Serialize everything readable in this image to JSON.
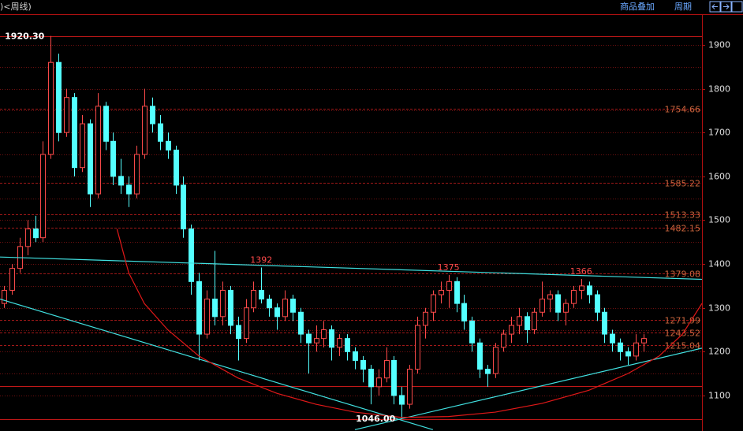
{
  "header": {
    "left": ")<周线)",
    "overlay": "商品叠加",
    "period": "周期"
  },
  "chart_data": {
    "type": "candlestick",
    "up_color": "#ff4a4a",
    "down_color": "#54ffff",
    "xlim": [
      -0.5,
      89.5
    ],
    "ylim": [
      1019,
      1970
    ],
    "yticks": [
      1100,
      1200,
      1300,
      1400,
      1500,
      1600,
      1700,
      1800,
      1900
    ],
    "minor_yticks": [
      1150,
      1250,
      1350,
      1450,
      1550,
      1650,
      1750,
      1850
    ],
    "grid": true,
    "candles": [
      [
        1310,
        1350,
        1300,
        1340
      ],
      [
        1340,
        1400,
        1330,
        1390
      ],
      [
        1390,
        1460,
        1380,
        1440
      ],
      [
        1440,
        1500,
        1420,
        1480
      ],
      [
        1480,
        1510,
        1450,
        1460
      ],
      [
        1460,
        1680,
        1450,
        1650
      ],
      [
        1650,
        1920.3,
        1640,
        1860
      ],
      [
        1860,
        1880,
        1680,
        1700
      ],
      [
        1700,
        1800,
        1690,
        1780
      ],
      [
        1780,
        1790,
        1600,
        1620
      ],
      [
        1620,
        1740,
        1610,
        1720
      ],
      [
        1720,
        1730,
        1530,
        1560
      ],
      [
        1560,
        1790,
        1550,
        1760
      ],
      [
        1760,
        1770,
        1660,
        1680
      ],
      [
        1680,
        1700,
        1580,
        1600
      ],
      [
        1600,
        1640,
        1560,
        1580
      ],
      [
        1580,
        1600,
        1530,
        1560
      ],
      [
        1560,
        1670,
        1550,
        1650
      ],
      [
        1650,
        1800,
        1640,
        1760
      ],
      [
        1760,
        1780,
        1700,
        1720
      ],
      [
        1720,
        1740,
        1660,
        1680
      ],
      [
        1680,
        1700,
        1640,
        1660
      ],
      [
        1660,
        1670,
        1560,
        1580
      ],
      [
        1580,
        1600,
        1460,
        1480
      ],
      [
        1480,
        1490,
        1330,
        1360
      ],
      [
        1360,
        1380,
        1180,
        1240
      ],
      [
        1240,
        1340,
        1230,
        1320
      ],
      [
        1320,
        1430,
        1260,
        1280
      ],
      [
        1280,
        1360,
        1260,
        1340
      ],
      [
        1340,
        1350,
        1240,
        1260
      ],
      [
        1260,
        1280,
        1180,
        1230
      ],
      [
        1230,
        1320,
        1220,
        1300
      ],
      [
        1300,
        1360,
        1290,
        1340
      ],
      [
        1340,
        1392,
        1310,
        1320
      ],
      [
        1320,
        1330,
        1280,
        1300
      ],
      [
        1300,
        1310,
        1250,
        1280
      ],
      [
        1280,
        1340,
        1270,
        1320
      ],
      [
        1320,
        1330,
        1270,
        1290
      ],
      [
        1290,
        1300,
        1220,
        1240
      ],
      [
        1240,
        1250,
        1150,
        1220
      ],
      [
        1220,
        1260,
        1200,
        1230
      ],
      [
        1230,
        1270,
        1210,
        1250
      ],
      [
        1250,
        1260,
        1180,
        1210
      ],
      [
        1210,
        1240,
        1190,
        1230
      ],
      [
        1230,
        1240,
        1180,
        1200
      ],
      [
        1200,
        1210,
        1160,
        1180
      ],
      [
        1180,
        1190,
        1130,
        1160
      ],
      [
        1160,
        1170,
        1080,
        1120
      ],
      [
        1120,
        1160,
        1100,
        1140
      ],
      [
        1140,
        1210,
        1130,
        1180
      ],
      [
        1180,
        1190,
        1080,
        1100
      ],
      [
        1100,
        1120,
        1046,
        1080
      ],
      [
        1080,
        1170,
        1070,
        1160
      ],
      [
        1160,
        1280,
        1150,
        1260
      ],
      [
        1260,
        1300,
        1230,
        1290
      ],
      [
        1290,
        1340,
        1270,
        1330
      ],
      [
        1330,
        1360,
        1310,
        1340
      ],
      [
        1340,
        1375,
        1300,
        1360
      ],
      [
        1360,
        1370,
        1290,
        1310
      ],
      [
        1310,
        1330,
        1250,
        1270
      ],
      [
        1270,
        1280,
        1200,
        1220
      ],
      [
        1220,
        1230,
        1140,
        1160
      ],
      [
        1160,
        1170,
        1120,
        1150
      ],
      [
        1150,
        1220,
        1140,
        1210
      ],
      [
        1210,
        1250,
        1200,
        1240
      ],
      [
        1240,
        1280,
        1220,
        1260
      ],
      [
        1260,
        1300,
        1240,
        1280
      ],
      [
        1280,
        1290,
        1220,
        1250
      ],
      [
        1250,
        1300,
        1240,
        1290
      ],
      [
        1290,
        1360,
        1280,
        1320
      ],
      [
        1320,
        1340,
        1290,
        1330
      ],
      [
        1330,
        1340,
        1270,
        1290
      ],
      [
        1290,
        1320,
        1260,
        1310
      ],
      [
        1310,
        1350,
        1300,
        1340
      ],
      [
        1340,
        1366,
        1320,
        1350
      ],
      [
        1350,
        1360,
        1310,
        1330
      ],
      [
        1330,
        1340,
        1270,
        1290
      ],
      [
        1290,
        1300,
        1220,
        1240
      ],
      [
        1240,
        1250,
        1200,
        1220
      ],
      [
        1220,
        1230,
        1180,
        1200
      ],
      [
        1200,
        1210,
        1170,
        1190
      ],
      [
        1190,
        1240,
        1180,
        1220
      ],
      [
        1220,
        1240,
        1200,
        1230
      ]
    ],
    "levels": [
      1754.66,
      1585.22,
      1513.33,
      1482.15,
      1379.08,
      1271.99,
      1243.52,
      1215.04
    ],
    "level_color": "#c8643c",
    "solid_lines": [
      {
        "value": 1920.3,
        "label": "1920.30"
      },
      1122,
      {
        "value": 1046,
        "label": "1046.00"
      }
    ],
    "high_labels": [
      1392,
      1375,
      1366
    ],
    "trendlines": [
      {
        "color": "#40e0e0",
        "x": [
          -0.5,
          89.5
        ],
        "y": [
          1416,
          1365
        ]
      },
      {
        "color": "#40e0e0",
        "x": [
          -0.5,
          55
        ],
        "y": [
          1320,
          1022
        ]
      },
      {
        "color": "#40e0e0",
        "x": [
          45,
          89.5
        ],
        "y": [
          1022,
          1208
        ]
      },
      {
        "color": "#e01818",
        "x": [
          14.5,
          16,
          18,
          21,
          25,
          30,
          35,
          40,
          45,
          51,
          57,
          63,
          69,
          75,
          80,
          84,
          87,
          89.5
        ],
        "y": [
          1480,
          1380,
          1310,
          1250,
          1190,
          1140,
          1105,
          1080,
          1062,
          1050,
          1052,
          1062,
          1082,
          1112,
          1150,
          1190,
          1240,
          1310
        ]
      }
    ]
  }
}
